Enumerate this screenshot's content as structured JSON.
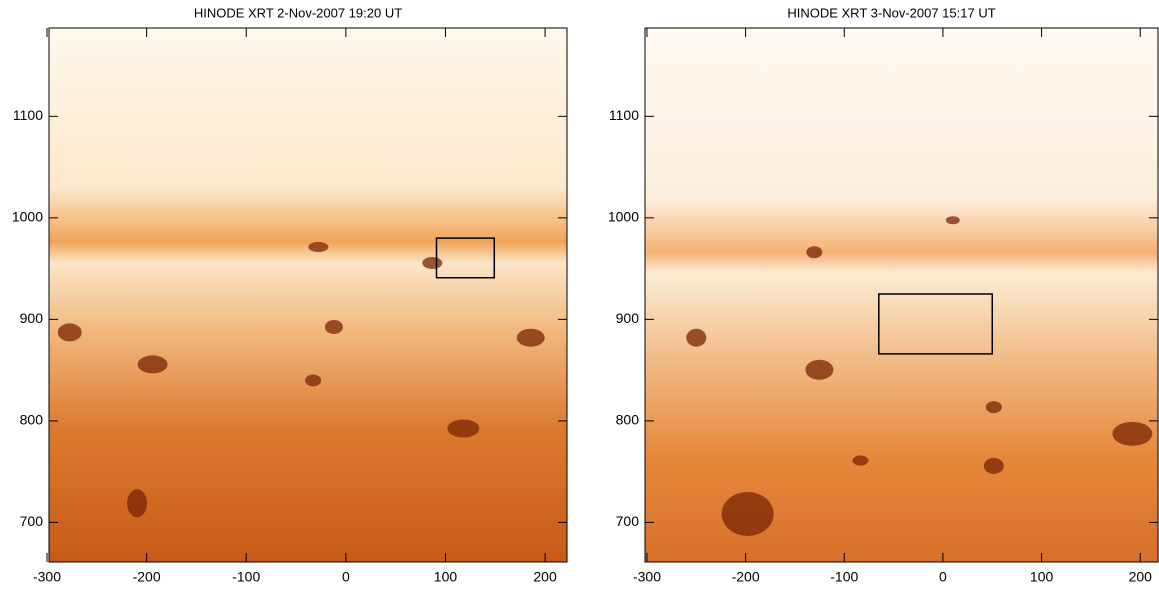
{
  "panels": [
    {
      "title": "HINODE XRT   2-Nov-2007  19:20 UT",
      "xlim": [
        -298,
        222
      ],
      "ylim": [
        661,
        1187
      ],
      "xticks": [
        -300,
        -200,
        -100,
        0,
        100,
        200
      ],
      "yticks": [
        700,
        800,
        900,
        1000,
        1100
      ],
      "box": {
        "x": [
          91,
          149
        ],
        "y": [
          941,
          980
        ]
      }
    },
    {
      "title": "HINODE XRT   3-Nov-2007  15:17 UT",
      "xlim": [
        -302,
        218
      ],
      "ylim": [
        661,
        1187
      ],
      "xticks": [
        -300,
        -200,
        -100,
        0,
        100,
        200
      ],
      "yticks": [
        700,
        800,
        900,
        1000,
        1100
      ],
      "box": {
        "x": [
          -65,
          50
        ],
        "y": [
          866,
          925
        ]
      }
    }
  ]
}
